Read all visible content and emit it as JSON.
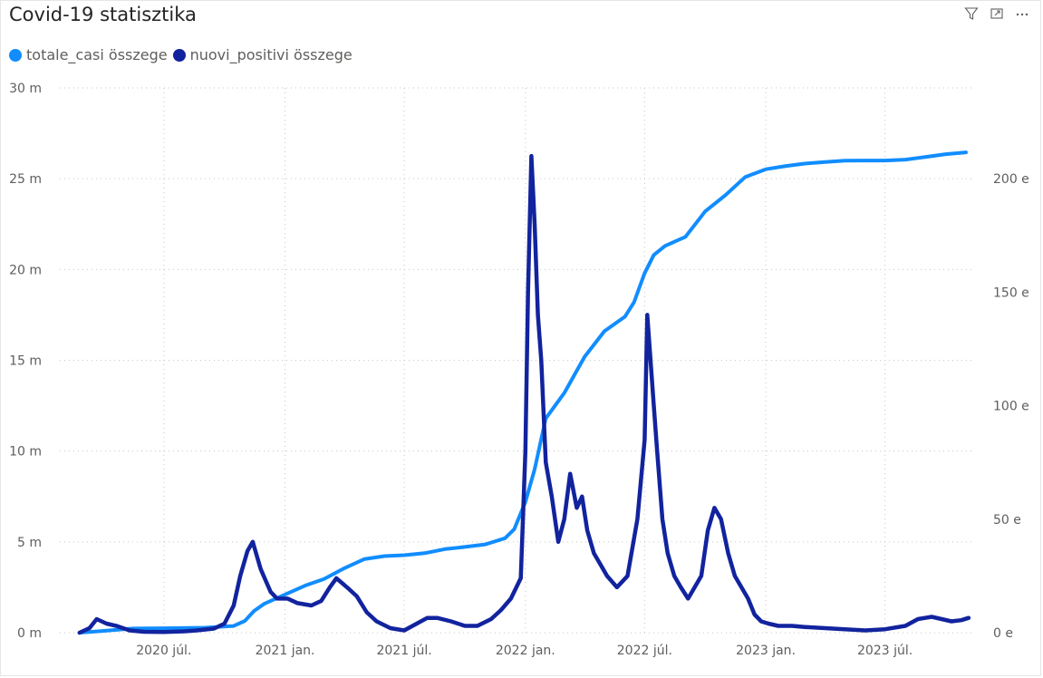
{
  "title": "Covid-19 statisztika",
  "header_icons": [
    "filter-icon",
    "focus-mode-icon",
    "more-options-icon"
  ],
  "legend": {
    "items": [
      {
        "label": "totale_casi összege",
        "color": "#118DFF"
      },
      {
        "label": "nuovi_positivi összege",
        "color": "#12239E"
      }
    ]
  },
  "chart_data": {
    "type": "line",
    "title": "Covid-19 statisztika",
    "x_ticks": [
      "2020 júl.",
      "2021 jan.",
      "2021 júl.",
      "2022 jan.",
      "2022 júl.",
      "2023 jan.",
      "2023 júl."
    ],
    "y_left": {
      "ticks": [
        "0 m",
        "5 m",
        "10 m",
        "15 m",
        "20 m",
        "25 m",
        "30 m"
      ],
      "range": [
        0,
        30000000
      ]
    },
    "y_right": {
      "ticks": [
        "0 e",
        "50 e",
        "100 e",
        "150 e",
        "200 e"
      ],
      "range": [
        0,
        240000
      ]
    },
    "grid": true,
    "legend_position": "top-left",
    "series": [
      {
        "name": "totale_casi összege",
        "axis": "left",
        "color": "#118DFF",
        "x": [
          "2020-02-24",
          "2020-04-01",
          "2020-05-15",
          "2020-07-01",
          "2020-09-01",
          "2020-10-15",
          "2020-11-01",
          "2020-11-15",
          "2020-12-01",
          "2021-01-01",
          "2021-02-01",
          "2021-03-01",
          "2021-04-01",
          "2021-05-01",
          "2021-06-01",
          "2021-07-01",
          "2021-08-01",
          "2021-09-01",
          "2021-10-01",
          "2021-11-01",
          "2021-12-01",
          "2021-12-15",
          "2022-01-01",
          "2022-01-15",
          "2022-02-01",
          "2022-02-15",
          "2022-03-01",
          "2022-04-01",
          "2022-05-01",
          "2022-06-01",
          "2022-06-15",
          "2022-07-01",
          "2022-07-15",
          "2022-08-01",
          "2022-09-01",
          "2022-10-01",
          "2022-11-01",
          "2022-12-01",
          "2023-01-01",
          "2023-02-01",
          "2023-03-01",
          "2023-04-01",
          "2023-05-01",
          "2023-06-01",
          "2023-07-01",
          "2023-08-01",
          "2023-09-01",
          "2023-10-01",
          "2023-11-01"
        ],
        "y": [
          0,
          100000,
          230000,
          245000,
          275000,
          370000,
          650000,
          1200000,
          1600000,
          2100000,
          2600000,
          2950000,
          3550000,
          4050000,
          4220000,
          4270000,
          4380000,
          4600000,
          4720000,
          4860000,
          5200000,
          5700000,
          7200000,
          9000000,
          11800000,
          12500000,
          13200000,
          15200000,
          16600000,
          17400000,
          18200000,
          19800000,
          20800000,
          21300000,
          21800000,
          23200000,
          24100000,
          25100000,
          25520000,
          25700000,
          25830000,
          25920000,
          25990000,
          26000000,
          26000000,
          26050000,
          26200000,
          26350000,
          26450000
        ]
      },
      {
        "name": "nuovi_positivi összege",
        "axis": "right",
        "color": "#12239E",
        "x": [
          "2020-02-24",
          "2020-03-10",
          "2020-03-21",
          "2020-04-05",
          "2020-04-20",
          "2020-05-10",
          "2020-06-01",
          "2020-07-01",
          "2020-08-01",
          "2020-08-20",
          "2020-09-15",
          "2020-10-01",
          "2020-10-15",
          "2020-10-25",
          "2020-11-05",
          "2020-11-13",
          "2020-11-25",
          "2020-12-10",
          "2020-12-20",
          "2021-01-05",
          "2021-01-20",
          "2021-02-10",
          "2021-02-25",
          "2021-03-10",
          "2021-03-20",
          "2021-04-05",
          "2021-04-20",
          "2021-05-05",
          "2021-05-20",
          "2021-06-10",
          "2021-07-01",
          "2021-07-20",
          "2021-08-05",
          "2021-08-20",
          "2021-09-10",
          "2021-10-01",
          "2021-10-20",
          "2021-11-10",
          "2021-11-25",
          "2021-12-10",
          "2021-12-25",
          "2022-01-01",
          "2022-01-05",
          "2022-01-10",
          "2022-01-15",
          "2022-01-20",
          "2022-01-25",
          "2022-02-01",
          "2022-02-10",
          "2022-02-20",
          "2022-03-01",
          "2022-03-10",
          "2022-03-20",
          "2022-03-28",
          "2022-04-05",
          "2022-04-15",
          "2022-04-25",
          "2022-05-05",
          "2022-05-20",
          "2022-06-05",
          "2022-06-20",
          "2022-07-01",
          "2022-07-05",
          "2022-07-10",
          "2022-07-15",
          "2022-07-20",
          "2022-07-28",
          "2022-08-05",
          "2022-08-15",
          "2022-08-25",
          "2022-09-05",
          "2022-09-15",
          "2022-09-25",
          "2022-10-05",
          "2022-10-15",
          "2022-10-25",
          "2022-11-05",
          "2022-11-15",
          "2022-11-25",
          "2022-12-05",
          "2022-12-15",
          "2022-12-25",
          "2023-01-05",
          "2023-01-20",
          "2023-02-10",
          "2023-03-01",
          "2023-04-01",
          "2023-05-01",
          "2023-06-01",
          "2023-07-01",
          "2023-08-01",
          "2023-08-20",
          "2023-09-10",
          "2023-09-25",
          "2023-10-10",
          "2023-10-25",
          "2023-11-05"
        ],
        "y": [
          0,
          2000,
          6000,
          4000,
          3000,
          1000,
          400,
          300,
          600,
          1000,
          1800,
          4000,
          12000,
          25000,
          36000,
          40000,
          28000,
          18000,
          15000,
          15000,
          13000,
          12000,
          14000,
          20000,
          24000,
          20000,
          16000,
          9000,
          5000,
          2000,
          1000,
          4000,
          6500,
          6500,
          5000,
          3000,
          3000,
          6000,
          10000,
          15000,
          24000,
          80000,
          150000,
          210000,
          180000,
          140000,
          120000,
          75000,
          60000,
          40000,
          50000,
          70000,
          55000,
          60000,
          45000,
          35000,
          30000,
          25000,
          20000,
          25000,
          50000,
          85000,
          140000,
          120000,
          100000,
          80000,
          50000,
          35000,
          25000,
          20000,
          15000,
          20000,
          25000,
          45000,
          55000,
          50000,
          35000,
          25000,
          20000,
          15000,
          8000,
          5000,
          4000,
          3000,
          3000,
          2500,
          2000,
          1500,
          1000,
          1500,
          3000,
          6000,
          7000,
          6000,
          5000,
          5500,
          6500
        ]
      }
    ]
  }
}
